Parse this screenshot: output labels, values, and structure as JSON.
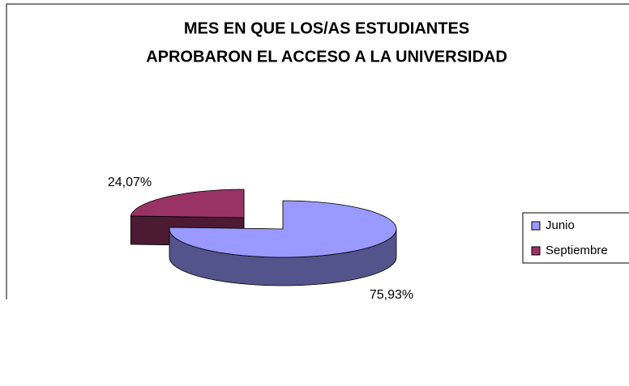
{
  "chart_data": {
    "type": "pie3d",
    "title": [
      "MES EN QUE LOS/AS ESTUDIANTES",
      "APROBARON EL ACCESO A LA UNIVERSIDAD"
    ],
    "categories": [
      "Junio",
      "Septiembre"
    ],
    "values": [
      75.93,
      24.07
    ],
    "value_labels": [
      "75,93%",
      "24,07%"
    ],
    "colors": [
      "#9999ff",
      "#993366"
    ],
    "legend": "right"
  }
}
